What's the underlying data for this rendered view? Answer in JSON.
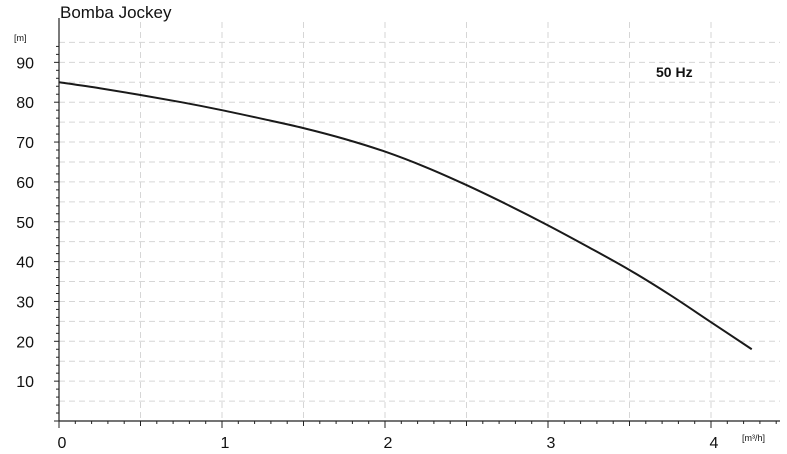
{
  "chart_data": {
    "type": "line",
    "title": "Bomba Jockey",
    "annotation": "50 Hz",
    "xlabel": "[m³/h]",
    "ylabel": "[m]",
    "xlim": [
      0,
      4.4
    ],
    "ylim": [
      0,
      95
    ],
    "x_ticks": [
      0,
      1,
      2,
      3,
      4
    ],
    "y_ticks": [
      10,
      20,
      30,
      40,
      50,
      60,
      70,
      80,
      90
    ],
    "grid": true,
    "series": [
      {
        "x": [
          0,
          0.25,
          0.5,
          0.75,
          1.0,
          1.25,
          1.5,
          1.75,
          2.0,
          2.25,
          2.5,
          2.75,
          3.0,
          3.25,
          3.5,
          3.75,
          4.0,
          4.25
        ],
        "y": [
          85,
          83.5,
          81.8,
          80.0,
          78.0,
          75.8,
          73.5,
          70.8,
          67.6,
          63.7,
          59.2,
          54.3,
          49.1,
          43.6,
          37.9,
          31.6,
          24.8,
          18.0
        ],
        "color": "#1a1a1a"
      }
    ]
  }
}
